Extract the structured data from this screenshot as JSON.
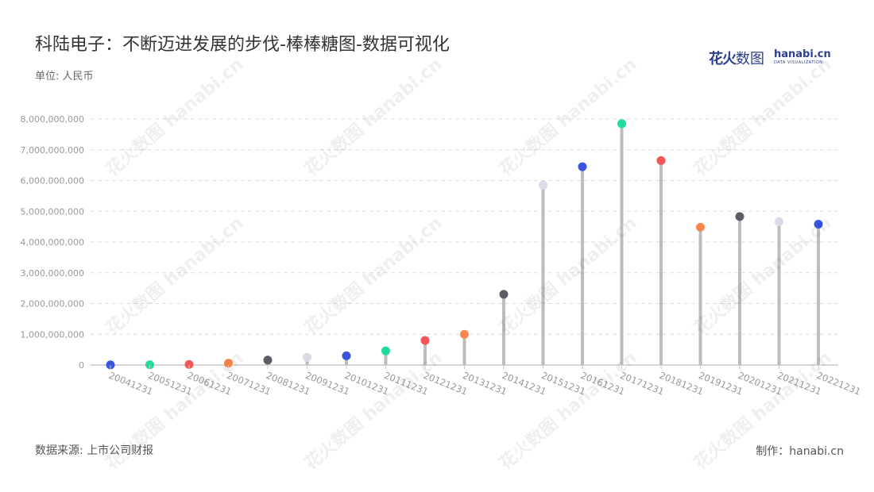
{
  "title": "科陆电子：不断迈进发展的步伐-棒棒糖图-数据可视化",
  "unit_label": "单位: 人民币",
  "source_label": "数据来源: 上市公司财报",
  "credit_label": "制作：hanabi.cn",
  "logo": {
    "cn_main": "花火",
    "cn_rest": "数图",
    "en": "hanabi.cn",
    "sub": "DATA VISUALIZATION"
  },
  "watermark_text": "花火数图 hanabi.cn",
  "colors": {
    "stem": "#bdbdbd",
    "grid": "#dddddd",
    "axis": "#cccccc",
    "tick_label": "#999999",
    "palette": [
      "#3a55e0",
      "#1fdc9a",
      "#f25757",
      "#f6884f",
      "#5e5c66",
      "#d9dbe6"
    ]
  },
  "chart_data": {
    "type": "lollipop",
    "categories": [
      "20041231",
      "20051231",
      "20061231",
      "20071231",
      "20081231",
      "20091231",
      "20101231",
      "20111231",
      "20121231",
      "20131231",
      "20141231",
      "20151231",
      "20161231",
      "20171231",
      "20181231",
      "20191231",
      "20201231",
      "20211231",
      "20221231"
    ],
    "values": [
      5000000,
      10000000,
      20000000,
      60000000,
      160000000,
      250000000,
      300000000,
      460000000,
      800000000,
      1000000000,
      2300000000,
      5850000000,
      6450000000,
      7850000000,
      6650000000,
      4480000000,
      4830000000,
      4660000000,
      4580000000
    ],
    "ylim": [
      0,
      8000000000
    ],
    "yticks": [
      0,
      1000000000,
      2000000000,
      3000000000,
      4000000000,
      5000000000,
      6000000000,
      7000000000,
      8000000000
    ],
    "ytick_labels": [
      "0",
      "1,000,000,000",
      "2,000,000,000",
      "3,000,000,000",
      "4,000,000,000",
      "5,000,000,000",
      "6,000,000,000",
      "7,000,000,000",
      "8,000,000,000"
    ],
    "grid": true
  }
}
